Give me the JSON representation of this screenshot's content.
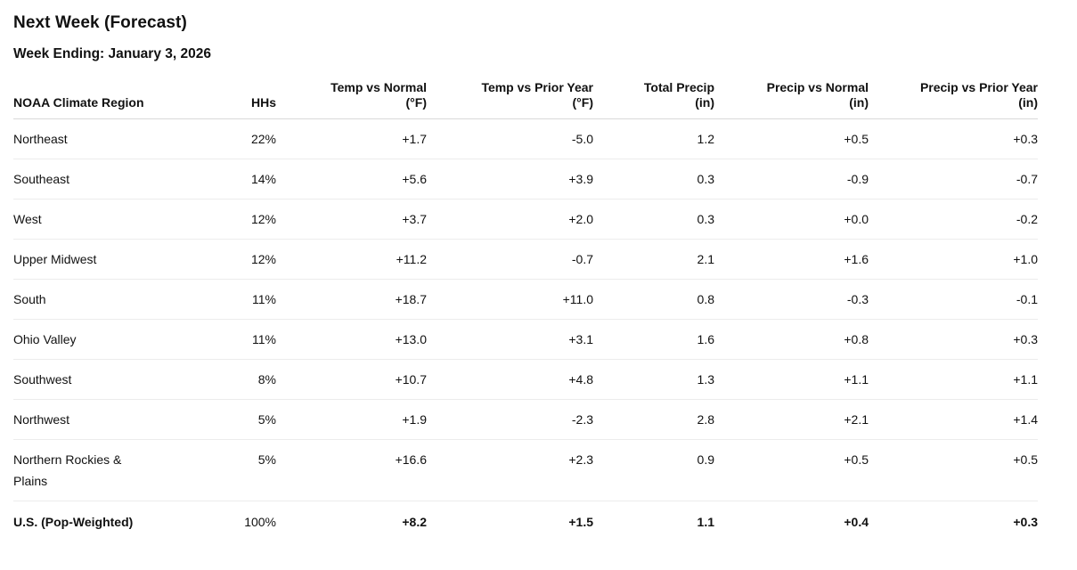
{
  "page": {
    "title": "Next Week (Forecast)",
    "subtitle": "Week Ending: January 3, 2026"
  },
  "colors": {
    "text": "#111111",
    "background": "#ffffff",
    "header_border": "#d9d9d9",
    "row_border": "#ececec"
  },
  "table": {
    "columns": [
      {
        "line1": "NOAA Climate Region"
      },
      {
        "line1": "HHs"
      },
      {
        "line1": "Temp vs Normal",
        "line2": "(°F)"
      },
      {
        "line1": "Temp vs Prior Year",
        "line2": "(°F)"
      },
      {
        "line1": "Total Precip",
        "line2": "(in)"
      },
      {
        "line1": "Precip vs Normal",
        "line2": "(in)"
      },
      {
        "line1": "Precip vs Prior Year",
        "line2": "(in)"
      }
    ],
    "rows": [
      {
        "cells": [
          "Northeast",
          "22%",
          "+1.7",
          "-5.0",
          "1.2",
          "+0.5",
          "+0.3"
        ]
      },
      {
        "cells": [
          "Southeast",
          "14%",
          "+5.6",
          "+3.9",
          "0.3",
          "-0.9",
          "-0.7"
        ]
      },
      {
        "cells": [
          "West",
          "12%",
          "+3.7",
          "+2.0",
          "0.3",
          "+0.0",
          "-0.2"
        ]
      },
      {
        "cells": [
          "Upper Midwest",
          "12%",
          "+11.2",
          "-0.7",
          "2.1",
          "+1.6",
          "+1.0"
        ]
      },
      {
        "cells": [
          "South",
          "11%",
          "+18.7",
          "+11.0",
          "0.8",
          "-0.3",
          "-0.1"
        ]
      },
      {
        "cells": [
          "Ohio Valley",
          "11%",
          "+13.0",
          "+3.1",
          "1.6",
          "+0.8",
          "+0.3"
        ]
      },
      {
        "cells": [
          "Southwest",
          "8%",
          "+10.7",
          "+4.8",
          "1.3",
          "+1.1",
          "+1.1"
        ]
      },
      {
        "cells": [
          "Northwest",
          "5%",
          "+1.9",
          "-2.3",
          "2.8",
          "+2.1",
          "+1.4"
        ]
      },
      {
        "cells": [
          "Northern Rockies & Plains",
          "5%",
          "+16.6",
          "+2.3",
          "0.9",
          "+0.5",
          "+0.5"
        ]
      }
    ],
    "total_row": {
      "cells": [
        "U.S. (Pop-Weighted)",
        "100%",
        "+8.2",
        "+1.5",
        "1.1",
        "+0.4",
        "+0.3"
      ]
    }
  }
}
